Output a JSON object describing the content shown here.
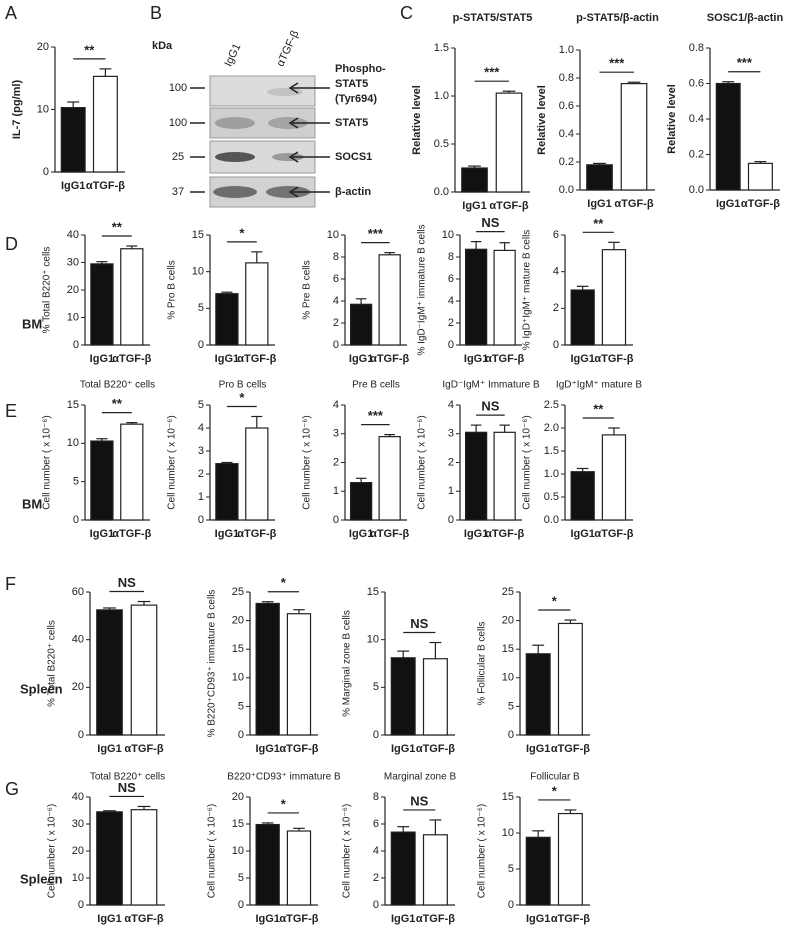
{
  "blot": {
    "panel": "B",
    "unit_label": "kDa",
    "lanes": [
      "IgG1",
      "αTGF-β"
    ],
    "rows": [
      {
        "marker": "100",
        "label_lines": [
          "Phospho-",
          "STAT5",
          "(Tyr694)"
        ]
      },
      {
        "marker": "100",
        "label_lines": [
          "STAT5"
        ]
      },
      {
        "marker": "25",
        "label_lines": [
          "SOCS1"
        ]
      },
      {
        "marker": "37",
        "label_lines": [
          "β-actin"
        ]
      }
    ]
  },
  "chart_data": [
    {
      "type": "bar",
      "panel": "A",
      "y_label": "IL-7 (pg/ml)",
      "categories": [
        "IgG1",
        "αTGF-β"
      ],
      "values": [
        10.3,
        15.3
      ],
      "errors": [
        0.9,
        1.2
      ],
      "colors": [
        "#111111",
        "#ffffff"
      ],
      "ylim": [
        0,
        20
      ],
      "yticks": [
        0,
        10,
        20
      ],
      "annotation": "**"
    },
    {
      "type": "bar",
      "panel": "C",
      "title": "p-STAT5/STAT5",
      "y_label": "Relative level",
      "categories": [
        "IgG1",
        "αTGF-β"
      ],
      "values": [
        0.25,
        1.03
      ],
      "errors": [
        0.02,
        0.02
      ],
      "colors": [
        "#111111",
        "#ffffff"
      ],
      "ylim": [
        0,
        1.5
      ],
      "yticks": [
        {
          "value": 0,
          "label": "0.0"
        },
        0.5,
        {
          "value": 1,
          "label": "1.0"
        },
        1.5
      ],
      "annotation": "***"
    },
    {
      "type": "bar",
      "title": "p-STAT5/β-actin",
      "y_label": "Relative level",
      "categories": [
        "IgG1",
        "αTGF-β"
      ],
      "values": [
        0.18,
        0.76
      ],
      "errors": [
        0.01,
        0.01
      ],
      "colors": [
        "#111111",
        "#ffffff"
      ],
      "ylim": [
        0,
        1
      ],
      "yticks": [
        {
          "value": 0,
          "label": "0.0"
        },
        0.2,
        0.4,
        0.6,
        0.8,
        {
          "value": 1,
          "label": "1.0"
        }
      ],
      "annotation": "***"
    },
    {
      "type": "bar",
      "title": "SOSC1/β-actin",
      "y_label": "Relative level",
      "categories": [
        "IgG1",
        "αTGF-β"
      ],
      "values": [
        0.6,
        0.15
      ],
      "errors": [
        0.01,
        0.01
      ],
      "colors": [
        "#111111",
        "#ffffff"
      ],
      "ylim": [
        0,
        0.8
      ],
      "yticks": [
        {
          "value": 0,
          "label": "0.0"
        },
        0.2,
        0.4,
        0.6,
        0.8
      ],
      "annotation": "***"
    },
    {
      "type": "bar",
      "panel": "D",
      "row_label": "BM",
      "y_label": "% Total B220⁺ cells",
      "categories": [
        "IgG1",
        "αTGF-β"
      ],
      "values": [
        29.5,
        35
      ],
      "errors": [
        0.8,
        1
      ],
      "colors": [
        "#111111",
        "#ffffff"
      ],
      "ylim": [
        0,
        40
      ],
      "yticks": [
        0,
        10,
        20,
        30,
        40
      ],
      "annotation": "**"
    },
    {
      "type": "bar",
      "y_label": "% Pro B cells",
      "categories": [
        "IgG1",
        "αTGF-β"
      ],
      "values": [
        7,
        11.2
      ],
      "errors": [
        0.2,
        1.5
      ],
      "colors": [
        "#111111",
        "#ffffff"
      ],
      "ylim": [
        0,
        15
      ],
      "yticks": [
        0,
        5,
        10,
        15
      ],
      "annotation": "*"
    },
    {
      "type": "bar",
      "y_label": "% Pre B cells",
      "categories": [
        "IgG1",
        "αTGF-β"
      ],
      "values": [
        3.7,
        8.2
      ],
      "errors": [
        0.5,
        0.2
      ],
      "colors": [
        "#111111",
        "#ffffff"
      ],
      "ylim": [
        0,
        10
      ],
      "yticks": [
        0,
        2,
        4,
        6,
        8,
        10
      ],
      "annotation": "***"
    },
    {
      "type": "bar",
      "y_label": "% IgD⁻IgM⁺ immature B cells",
      "categories": [
        "IgG1",
        "αTGF-β"
      ],
      "values": [
        8.7,
        8.6
      ],
      "errors": [
        0.7,
        0.7
      ],
      "colors": [
        "#111111",
        "#ffffff"
      ],
      "ylim": [
        0,
        10
      ],
      "yticks": [
        0,
        2,
        4,
        6,
        8,
        10
      ],
      "annotation": "NS"
    },
    {
      "type": "bar",
      "y_label": "% IgD⁺IgM⁺ mature B cells",
      "categories": [
        "IgG1",
        "αTGF-β"
      ],
      "values": [
        3,
        5.2
      ],
      "errors": [
        0.2,
        0.4
      ],
      "colors": [
        "#111111",
        "#ffffff"
      ],
      "ylim": [
        0,
        6
      ],
      "yticks": [
        0,
        2,
        4,
        6
      ],
      "annotation": "**"
    },
    {
      "type": "bar",
      "panel": "E",
      "row_label": "BM",
      "title": "Total B220⁺ cells",
      "y_label": "Cell number ( x 10⁻⁶)",
      "categories": [
        "IgG1",
        "αTGF-β"
      ],
      "values": [
        10.3,
        12.5
      ],
      "errors": [
        0.3,
        0.2
      ],
      "colors": [
        "#111111",
        "#ffffff"
      ],
      "ylim": [
        0,
        15
      ],
      "yticks": [
        0,
        5,
        10,
        15
      ],
      "annotation": "**"
    },
    {
      "type": "bar",
      "title": "Pro B cells",
      "y_label": "Cell number ( x 10⁻⁶)",
      "categories": [
        "IgG1",
        "αTGF-β"
      ],
      "values": [
        2.45,
        4
      ],
      "errors": [
        0.05,
        0.5
      ],
      "colors": [
        "#111111",
        "#ffffff"
      ],
      "ylim": [
        0,
        5
      ],
      "yticks": [
        0,
        1,
        2,
        3,
        4,
        5
      ],
      "annotation": "*"
    },
    {
      "type": "bar",
      "title": "Pre B cells",
      "y_label": "Cell number ( x 10⁻⁶)",
      "categories": [
        "IgG1",
        "αTGF-β"
      ],
      "values": [
        1.3,
        2.9
      ],
      "errors": [
        0.15,
        0.07
      ],
      "colors": [
        "#111111",
        "#ffffff"
      ],
      "ylim": [
        0,
        4
      ],
      "yticks": [
        0,
        1,
        2,
        3,
        4
      ],
      "annotation": "***"
    },
    {
      "type": "bar",
      "title": "IgD⁻IgM⁺ Immature B",
      "y_label": "Cell number ( x 10⁻⁶)",
      "categories": [
        "IgG1",
        "αTGF-β"
      ],
      "values": [
        3.05,
        3.05
      ],
      "errors": [
        0.25,
        0.25
      ],
      "colors": [
        "#111111",
        "#ffffff"
      ],
      "ylim": [
        0,
        4
      ],
      "yticks": [
        0,
        1,
        2,
        3,
        4
      ],
      "annotation": "NS"
    },
    {
      "type": "bar",
      "title": "IgD⁺IgM⁺ mature B",
      "y_label": "Cell number ( x 10⁻⁶)",
      "categories": [
        "IgG1",
        "αTGF-β"
      ],
      "values": [
        1.05,
        1.85
      ],
      "errors": [
        0.07,
        0.15
      ],
      "colors": [
        "#111111",
        "#ffffff"
      ],
      "ylim": [
        0,
        2.5
      ],
      "yticks": [
        {
          "value": 0,
          "label": "0.0"
        },
        0.5,
        {
          "value": 1,
          "label": "1.0"
        },
        1.5,
        {
          "value": 2,
          "label": "2.0"
        },
        2.5
      ],
      "annotation": "**"
    },
    {
      "type": "bar",
      "panel": "F",
      "row_label": "Spleen",
      "y_label": "% Total B220⁺ cells",
      "categories": [
        "IgG1",
        "αTGF-β"
      ],
      "values": [
        52.5,
        54.5
      ],
      "errors": [
        0.8,
        1.5
      ],
      "colors": [
        "#111111",
        "#ffffff"
      ],
      "ylim": [
        0,
        60
      ],
      "yticks": [
        0,
        20,
        40,
        60
      ],
      "annotation": "NS"
    },
    {
      "type": "bar",
      "y_label": "% B220⁺CD93⁺ immature B cells",
      "categories": [
        "IgG1",
        "αTGF-β"
      ],
      "values": [
        23,
        21.2
      ],
      "errors": [
        0.3,
        0.7
      ],
      "colors": [
        "#111111",
        "#ffffff"
      ],
      "ylim": [
        0,
        25
      ],
      "yticks": [
        0,
        5,
        10,
        15,
        20,
        25
      ],
      "annotation": "*"
    },
    {
      "type": "bar",
      "y_label": "% Marginal zone B cells",
      "categories": [
        "IgG1",
        "αTGF-β"
      ],
      "values": [
        8.1,
        8
      ],
      "errors": [
        0.7,
        1.7
      ],
      "colors": [
        "#111111",
        "#ffffff"
      ],
      "ylim": [
        0,
        15
      ],
      "yticks": [
        0,
        5,
        10,
        15
      ],
      "annotation": "NS"
    },
    {
      "type": "bar",
      "y_label": "% Follicular B cells",
      "categories": [
        "IgG1",
        "αTGF-β"
      ],
      "values": [
        14.2,
        19.5
      ],
      "errors": [
        1.5,
        0.6
      ],
      "colors": [
        "#111111",
        "#ffffff"
      ],
      "ylim": [
        0,
        25
      ],
      "yticks": [
        0,
        5,
        10,
        15,
        20,
        25
      ],
      "annotation": "*"
    },
    {
      "type": "bar",
      "panel": "G",
      "row_label": "Spleen",
      "title": "Total B220⁺ cells",
      "y_label": "Cell number ( x 10⁻⁶)",
      "categories": [
        "IgG1",
        "αTGF-β"
      ],
      "values": [
        34.5,
        35.3
      ],
      "errors": [
        0.4,
        1.2
      ],
      "colors": [
        "#111111",
        "#ffffff"
      ],
      "ylim": [
        0,
        40
      ],
      "yticks": [
        0,
        10,
        20,
        30,
        40
      ],
      "annotation": "NS"
    },
    {
      "type": "bar",
      "title": "B220⁺CD93⁺ immature B",
      "y_label": "Cell number ( x 10⁻⁶)",
      "categories": [
        "IgG1",
        "αTGF-β"
      ],
      "values": [
        14.9,
        13.7
      ],
      "errors": [
        0.3,
        0.5
      ],
      "colors": [
        "#111111",
        "#ffffff"
      ],
      "ylim": [
        0,
        20
      ],
      "yticks": [
        0,
        5,
        10,
        15,
        20
      ],
      "annotation": "*"
    },
    {
      "type": "bar",
      "title": "Marginal zone B",
      "y_label": "Cell number ( x 10⁻⁶)",
      "categories": [
        "IgG1",
        "αTGF-β"
      ],
      "values": [
        5.4,
        5.2
      ],
      "errors": [
        0.4,
        1.1
      ],
      "colors": [
        "#111111",
        "#ffffff"
      ],
      "ylim": [
        0,
        8
      ],
      "yticks": [
        0,
        2,
        4,
        6,
        8
      ],
      "annotation": "NS"
    },
    {
      "type": "bar",
      "title": "Follicular B",
      "y_label": "Cell number ( x 10⁻⁶)",
      "categories": [
        "IgG1",
        "αTGF-β"
      ],
      "values": [
        9.4,
        12.7
      ],
      "errors": [
        0.9,
        0.5
      ],
      "colors": [
        "#111111",
        "#ffffff"
      ],
      "ylim": [
        0,
        15
      ],
      "yticks": [
        0,
        5,
        10,
        15
      ],
      "annotation": "*"
    }
  ]
}
